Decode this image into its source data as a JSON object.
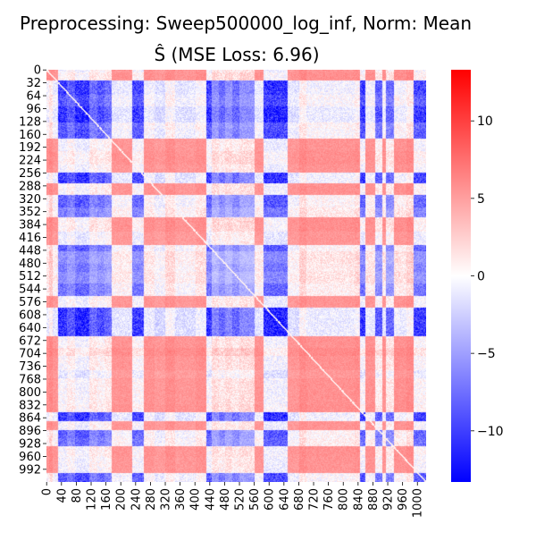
{
  "chart_data": {
    "type": "heatmap",
    "title_line1": "Preprocessing: Sweep500000_log_inf, Norm: Mean",
    "title_line2": "Ŝ (MSE Loss: 6.96)",
    "xlabel": "",
    "ylabel": "",
    "matrix_size": 1024,
    "x_ticks": [
      0,
      40,
      80,
      120,
      160,
      200,
      240,
      280,
      320,
      360,
      400,
      440,
      480,
      520,
      560,
      600,
      640,
      680,
      720,
      760,
      800,
      840,
      880,
      920,
      960,
      1000
    ],
    "y_ticks": [
      0,
      32,
      64,
      96,
      128,
      160,
      192,
      224,
      256,
      288,
      320,
      352,
      384,
      416,
      448,
      480,
      512,
      544,
      576,
      608,
      640,
      672,
      704,
      736,
      768,
      800,
      832,
      864,
      896,
      928,
      960,
      992
    ],
    "colorbar": {
      "min": -13.3,
      "max": 13.3,
      "ticks": [
        -10,
        -5,
        0,
        5,
        10
      ],
      "colormap": "bwr",
      "low_color": "#0000ff",
      "mid_color": "#ffffff",
      "high_color": "#ff0000"
    },
    "column_intensity": [
      [
        0,
        5,
        0.6
      ],
      [
        5,
        15,
        1.0
      ],
      [
        15,
        30,
        0.5
      ],
      [
        30,
        55,
        -0.9
      ],
      [
        55,
        75,
        -0.6
      ],
      [
        75,
        115,
        -1.0
      ],
      [
        115,
        135,
        -0.5
      ],
      [
        135,
        155,
        -0.7
      ],
      [
        155,
        175,
        -0.5
      ],
      [
        175,
        230,
        0.5
      ],
      [
        230,
        262,
        -0.8
      ],
      [
        262,
        290,
        0.6
      ],
      [
        290,
        320,
        0.3
      ],
      [
        320,
        345,
        0.8
      ],
      [
        345,
        400,
        0.4
      ],
      [
        400,
        430,
        0.7
      ],
      [
        430,
        445,
        -0.9
      ],
      [
        445,
        465,
        -0.3
      ],
      [
        465,
        480,
        -0.5
      ],
      [
        480,
        500,
        -0.3
      ],
      [
        500,
        520,
        -0.5
      ],
      [
        520,
        560,
        -0.3
      ],
      [
        560,
        585,
        0.5
      ],
      [
        585,
        650,
        -1.0
      ],
      [
        650,
        680,
        0.4
      ],
      [
        680,
        700,
        0.9
      ],
      [
        700,
        830,
        0.6
      ],
      [
        830,
        845,
        0.8
      ],
      [
        845,
        860,
        -0.9
      ],
      [
        860,
        885,
        0.6
      ],
      [
        885,
        905,
        -0.6
      ],
      [
        905,
        915,
        0.6
      ],
      [
        915,
        935,
        -0.5
      ],
      [
        935,
        950,
        0.7
      ],
      [
        950,
        970,
        0.6
      ],
      [
        970,
        990,
        0.9
      ],
      [
        990,
        1024,
        -0.8
      ]
    ],
    "row_intensity": [
      [
        0,
        5,
        0.6
      ],
      [
        5,
        25,
        0.8
      ],
      [
        25,
        60,
        -0.9
      ],
      [
        60,
        90,
        -0.7
      ],
      [
        90,
        130,
        -1.0
      ],
      [
        130,
        145,
        -0.6
      ],
      [
        145,
        170,
        -0.7
      ],
      [
        170,
        200,
        0.6
      ],
      [
        200,
        235,
        0.8
      ],
      [
        235,
        255,
        0.6
      ],
      [
        255,
        282,
        -0.9
      ],
      [
        282,
        310,
        0.7
      ],
      [
        310,
        340,
        -0.6
      ],
      [
        340,
        365,
        -0.4
      ],
      [
        365,
        400,
        0.8
      ],
      [
        400,
        435,
        0.5
      ],
      [
        435,
        450,
        -0.6
      ],
      [
        450,
        480,
        -0.3
      ],
      [
        480,
        500,
        -0.4
      ],
      [
        500,
        530,
        -0.3
      ],
      [
        530,
        560,
        -0.5
      ],
      [
        560,
        590,
        0.6
      ],
      [
        590,
        660,
        -1.0
      ],
      [
        660,
        690,
        0.7
      ],
      [
        690,
        710,
        1.0
      ],
      [
        710,
        745,
        0.7
      ],
      [
        745,
        765,
        0.4
      ],
      [
        765,
        830,
        0.7
      ],
      [
        830,
        850,
        0.8
      ],
      [
        850,
        872,
        -0.9
      ],
      [
        872,
        895,
        0.6
      ],
      [
        895,
        915,
        -0.6
      ],
      [
        915,
        935,
        -0.5
      ],
      [
        935,
        960,
        0.7
      ],
      [
        960,
        1000,
        0.6
      ],
      [
        1000,
        1024,
        -0.7
      ]
    ]
  }
}
